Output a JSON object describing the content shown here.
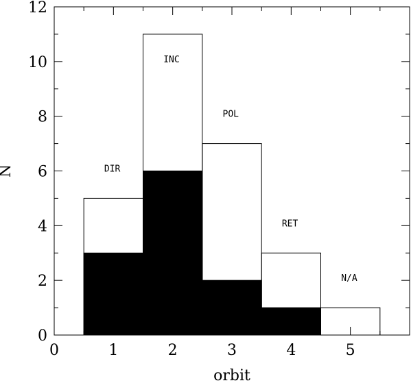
{
  "chart_data": {
    "type": "bar",
    "xlabel": "orbit",
    "ylabel": "N",
    "xlim": [
      0,
      6
    ],
    "ylim": [
      0,
      12
    ],
    "x_ticks": [
      0,
      1,
      2,
      3,
      4,
      5
    ],
    "y_ticks": [
      0,
      2,
      4,
      6,
      8,
      10,
      12
    ],
    "categories": [
      "1",
      "2",
      "3",
      "4",
      "5"
    ],
    "series": [
      {
        "style": "outline",
        "values": [
          5,
          11,
          7,
          3,
          1
        ]
      },
      {
        "style": "filled",
        "values": [
          3,
          6,
          2,
          1,
          0
        ]
      }
    ],
    "annotations": [
      {
        "text": "DIR",
        "x": 0.98,
        "y": 6.1
      },
      {
        "text": "INC",
        "x": 1.98,
        "y": 10.1
      },
      {
        "text": "POL",
        "x": 2.98,
        "y": 8.1
      },
      {
        "text": "RET",
        "x": 3.98,
        "y": 4.1
      },
      {
        "text": "N/A",
        "x": 4.98,
        "y": 2.1
      }
    ],
    "colors": {
      "outline": "#000000",
      "filled": "#000000",
      "background": "#ffffff"
    }
  }
}
